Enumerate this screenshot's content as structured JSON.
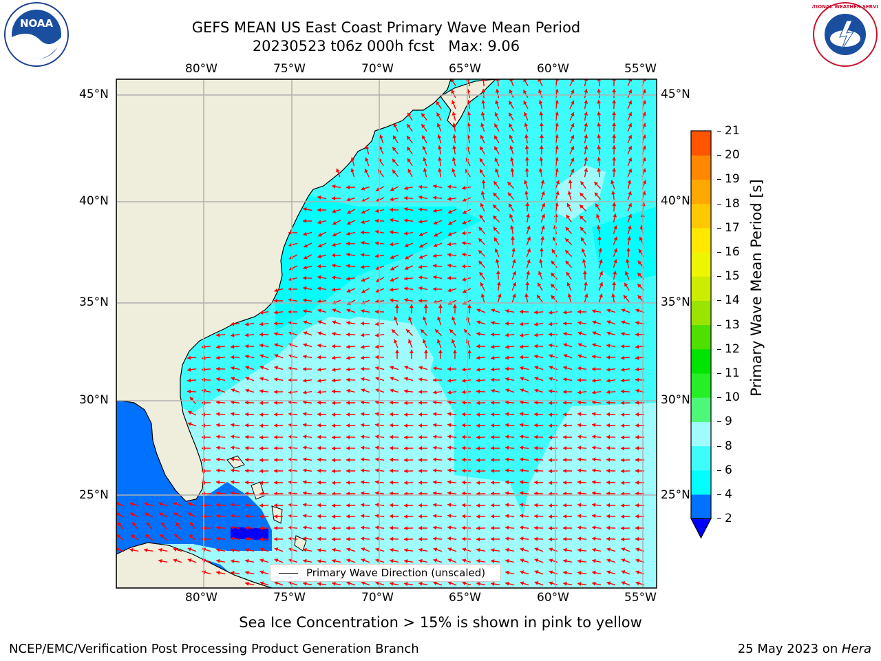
{
  "title": {
    "line1": "GEFS MEAN US East Coast Primary Wave Mean Period",
    "line2": "20230523 t06z 000h fcst   Max: 9.06"
  },
  "logos": {
    "left": {
      "text": "NOAA",
      "icon": "noaa-logo"
    },
    "right": {
      "text": "NATIONAL WEATHER SERVICE",
      "icon": "nws-logo"
    }
  },
  "axes": {
    "lon_labels": [
      "80°W",
      "75°W",
      "70°W",
      "65°W",
      "60°W",
      "55°W"
    ],
    "lat_labels": [
      "45°N",
      "40°N",
      "35°N",
      "30°N",
      "25°N"
    ]
  },
  "legend": {
    "label": "Primary Wave Direction (unscaled)"
  },
  "colorbar": {
    "label": "Primary Wave Mean Period [s]",
    "ticks": [
      "2",
      "4",
      "6",
      "8",
      "9",
      "10",
      "11",
      "12",
      "13",
      "14",
      "15",
      "16",
      "17",
      "18",
      "19",
      "20",
      "21"
    ],
    "colors": [
      "#0072ff",
      "#00ffff",
      "#3ffcfc",
      "#a0fcfc",
      "#5ff77f",
      "#37ee37",
      "#00e400",
      "#5fe000",
      "#a6e600",
      "#d6f000",
      "#f5f500",
      "#ffe000",
      "#ffc000",
      "#ff9e00",
      "#ff7800",
      "#ff4e00",
      "#ff1a00",
      "#ff0000"
    ],
    "extend_color": "#0000ff"
  },
  "map": {
    "land_color": "#efeddb",
    "arrow_color": "#ff0000",
    "grid_color": "#b0b0b0",
    "deep_blue": "#0072ff",
    "cyan": "#00ffff",
    "cyan_mid": "#3ffcfc",
    "cyan_light": "#a0fcfc"
  },
  "subtitle": "Sea Ice Concentration > 15% is shown in pink to yellow",
  "footer": {
    "left": "NCEP/EMC/Verification Post Processing Product Generation Branch",
    "right_prefix": "25 May 2023 on ",
    "right_machine": "Hera"
  }
}
